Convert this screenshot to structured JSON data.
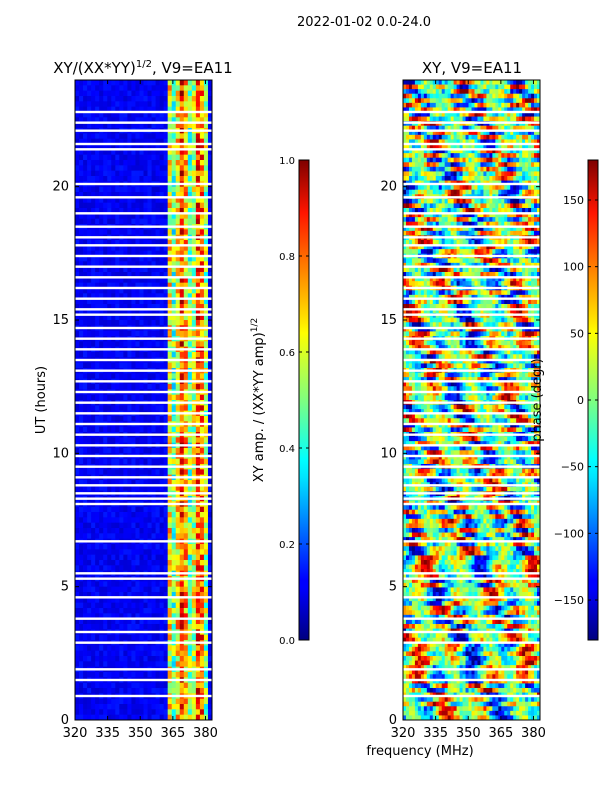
{
  "chart_data": [
    {
      "type": "heatmap",
      "suptitle": "2022-01-02 0.0-24.0",
      "title": "XY/(XX*YY)",
      "title_sup": "1/2",
      "title_suffix": ", V9=EA11",
      "xlabel": "",
      "ylabel": "UT (hours)",
      "xlim": [
        320,
        383
      ],
      "ylim": [
        0,
        24
      ],
      "x_ticks": [
        320,
        335,
        350,
        365,
        380
      ],
      "y_ticks": [
        0,
        5,
        10,
        15,
        20
      ],
      "colorbar": {
        "label": "XY amp. / (XX*YY amp)",
        "label_sup": "1/2",
        "range": [
          0.0,
          1.0
        ],
        "ticks": [
          "0.0",
          "0.2",
          "0.4",
          "0.6",
          "0.8",
          "1.0"
        ],
        "colormap": "jet"
      },
      "active_band_mhz": [
        363,
        381
      ],
      "gap_hours": [
        22.8,
        22.4,
        22.1,
        21.6,
        21.4,
        20.1,
        19.6,
        19.0,
        18.5,
        18.1,
        17.8,
        17.4,
        17.0,
        16.6,
        16.2,
        15.8,
        15.4,
        15.2,
        14.7,
        14.3,
        13.9,
        13.5,
        13.1,
        12.7,
        12.3,
        11.9,
        11.5,
        11.1,
        10.7,
        10.3,
        9.9,
        9.5,
        9.1,
        8.8,
        8.5,
        8.3,
        8.1,
        6.7,
        5.5,
        5.3,
        4.6,
        3.8,
        3.3,
        2.9,
        1.9,
        1.5,
        0.9
      ]
    },
    {
      "type": "heatmap",
      "title": "XY, V9=EA11",
      "xlabel": "frequency (MHz)",
      "ylabel": "",
      "xlim": [
        320,
        383
      ],
      "ylim": [
        0,
        24
      ],
      "x_ticks": [
        320,
        335,
        350,
        365,
        380
      ],
      "y_ticks": [
        0,
        5,
        10,
        15,
        20
      ],
      "colorbar": {
        "label": "phase (degr)",
        "range": [
          -180,
          180
        ],
        "ticks": [
          "−150",
          "−100",
          "−50",
          "0",
          "50",
          "100",
          "150"
        ],
        "colormap": "jet"
      },
      "gap_hours": [
        22.8,
        22.4,
        22.1,
        21.6,
        21.4,
        20.1,
        19.6,
        19.0,
        18.5,
        18.1,
        17.8,
        17.4,
        17.0,
        16.6,
        16.2,
        15.8,
        15.4,
        15.2,
        14.7,
        14.3,
        13.9,
        13.5,
        13.1,
        12.7,
        12.3,
        11.9,
        11.5,
        11.1,
        10.7,
        10.3,
        9.9,
        9.5,
        9.1,
        8.8,
        8.5,
        8.3,
        8.1,
        6.7,
        5.5,
        5.3,
        4.6,
        3.8,
        3.3,
        2.9,
        1.9,
        1.5,
        0.9
      ]
    }
  ]
}
